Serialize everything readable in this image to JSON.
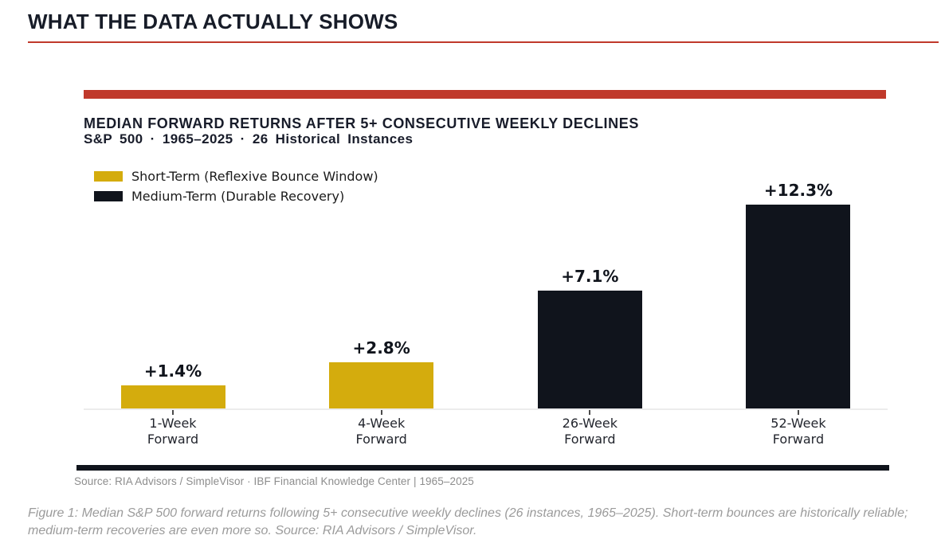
{
  "page": {
    "title": "WHAT THE DATA ACTUALLY SHOWS",
    "accent_color": "#c0392b"
  },
  "chart_data": {
    "type": "bar",
    "title": "MEDIAN FORWARD RETURNS AFTER 5+ CONSECUTIVE WEEKLY DECLINES",
    "subtitle": "S&P 500 · 1965–2025 · 26 Historical Instances",
    "categories": [
      "1-Week\nForward",
      "4-Week\nForward",
      "26-Week\nForward",
      "52-Week\nForward"
    ],
    "values": [
      1.4,
      2.8,
      7.1,
      12.3
    ],
    "value_labels": [
      "+1.4%",
      "+2.8%",
      "+7.1%",
      "+12.3%"
    ],
    "bar_colors": [
      "#d4ac0d",
      "#d4ac0d",
      "#10141c",
      "#10141c"
    ],
    "legend": [
      {
        "label": "Short-Term (Reflexive Bounce Window)",
        "color": "#d4ac0d"
      },
      {
        "label": "Medium-Term (Durable Recovery)",
        "color": "#10141c"
      }
    ],
    "legend_position": "upper left",
    "grid": false,
    "xlabel": "",
    "ylabel": "",
    "ylim": [
      0,
      13.6
    ],
    "accent_top_bar_color": "#c0392b",
    "bottom_bar_color": "#10141c",
    "source": "Source: RIA Advisors / SimpleVisor · IBF Financial Knowledge Center  |  1965–2025"
  },
  "caption": "Figure 1: Median S&P 500 forward returns following 5+ consecutive weekly declines (26 instances, 1965–2025). Short-term bounces are historically reliable; medium-term recoveries are even more so. Source: RIA Advisors / SimpleVisor."
}
